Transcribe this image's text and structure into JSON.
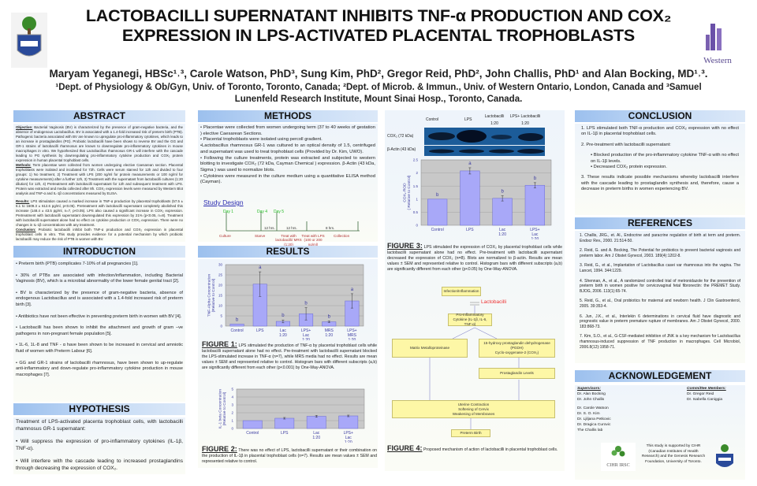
{
  "header": {
    "title_line1": "LACTOBACILLI SUPERNATANT INHIBITS TNF-α  PRODUCTION AND COX₂",
    "title_line2": "EXPRESSION IN LPS-ACTIVATED PLACENTAL TROPHOBLASTS",
    "authors": "Maryam Yeganegi, HBSc¹˒³, Carole Watson, PhD³, Sung Kim, PhD², Gregor Reid, PhD², John Challis, PhD¹ and Alan Bocking, MD¹˒³.",
    "affiliations": "¹Dept. of Physiology & Ob/Gyn, Univ. of Toronto, Toronto, Canada; ²Dept. of Microb. & Immun., Univ. of Western Ontario, London, Canada and ³Samuel Lunenfeld Research Institute, Mount Sinai Hosp., Toronto, Canada.",
    "left_logo": "University of Toronto crest",
    "right_logo_text": "Western"
  },
  "abstract": {
    "heading": "ABSTRACT",
    "objective_label": "Objective:",
    "objective": " Bacterial Vaginosis (BV) is characterized by the presence of gram-negative bacteria, and the absence of endogenous Lactobacillus. BV is associated with a 1.4-fold increased risk of preterm birth (PTB). Pathogenic bacteria associated with BV are known to upregulate pro-inflammatory cytokines, which leads to an increase in prostaglandins (PG). Probiotic lactobacilli have been shown to reverse BV and the GG and GR-1 strains of lactobacilli rhamnosus are known to downregulate pro-inflammatory cytokines in mouse macrophages in vitro. We hypothesized that Lactobacillus rhamnosus GR-1 will interfere with the cascade leading to PG synthesis by downregulating pro-inflammatory cytokine production and COX₂ protein expression in human placental trophoblast cells.",
    "methods_label": "Methods:",
    "methods": " Term placentae were collected from women undergoing elective Caesarean section. Placental trophoblasts were isolated and incubated for 72h. Cells were serum starved for 12h and divided to four groups: 1) No treatment, 2) Treatment with LPS (200 ng/ml for protein measurements or 100 ng/ml for cytokine measurements) after a further 12h, 3) Treatment with the supernatant from lactobacilli cultures (1:20 dilution) for 12h, 4) Pretreatment with lactobacilli supernatant for 12h and subsequent treatment with LPS. Protein was extracted and media collected after 8h. COX₂ expression levels were measured by Western Blot analysis and TNF-α and IL-1β concentrations measured by ELISA.",
    "results_label": "Results:",
    "results": " LPS stimulation caused a marked increase in TNF-α production by placental trophoblasts (57.5 ± 6.1 to 1609.3 ± 612.6 pg/ml, p<0.05). Pretreatment with lactobacilli supernatant completely abolished this increase (148.4 ± 43.5 pg/ml, n=7, p<0.05). LPS also caused a significant increase in COX₂ expression. Pretreatment with lactobacilli supernatant downregulated this expression by 21% (p<0.05, n=8). Treatment with lactobacilli supernatant alone had no effect on cytokine production or COX₂ expression. There were no changes in IL-1β concentrations with any treatment.",
    "conclusion_label": "Conclusion:",
    "conclusion": " Probiotic lactobacilli inhibit both TNF-α production and COX₂ expression in placental trophoblast cells in vitro. This study provides evidence for a potential mechanism by which probiotic lactobacilli may reduce the risk of PTB in women with BV."
  },
  "introduction": {
    "heading": "INTRODUCTION",
    "items": [
      "•  Preterm birth (PTB) complicates 7-10% of all pregnancies [1].",
      "•   30% of PTBs are associated with infection/inflammation, including Bacterial Vaginosis (BV), which is a microbial abnormality of the lower female genital tract [2].",
      "•   BV is  characterized by the presence of gram-negative bacteria, absence of endogenous Lactobacillus and is associated with a 1.4-fold increased risk of preterm birth [3].",
      "•   Antibiotics have not been effective in preventing preterm birth in women with BV [4].",
      "• Lactobacilli has been shown to inhibit the attachment and growth of gram –ve pathogens in non-pregnant female population [5].",
      "• 1L-6, 1L-8 and TNF - α have been shown to be increased in cervical and amniotic fluid of  women with Preterm Labour [6].",
      "• GG and GR-1 strains of lactobacilli rhamnosus, have been shown to up-regulate anti-inflammatory and down-regulate pro-inflammatory cytokine production in mouse macrophages [7]."
    ]
  },
  "hypothesis": {
    "heading": "HYPOTHESIS",
    "intro": "Treatment of LPS-activated placenta trophoblast cells, with lactobacilli rhamnosus GR-1 supernatant:",
    "items": [
      "•     Will suppress the expression of pro-inflammatory cytokines (IL-1β, TNF-α).",
      "•     Will interfere with the cascade leading to increased prostaglandins through decreasing the expression of COX₂."
    ]
  },
  "methods": {
    "heading": "METHODS",
    "items": [
      "•   Placentae were collected from women undergoing term (37 to 40 weeks of gestation ) elective Caesarean Sections.",
      "• Placental trophoblasts were isolated using percoll gradient.",
      "•Lactobacillus rhamnosus GR-1 was cultured to an optical density of 1.5, centrifuged and supernatant was used to treat trophoblast cells (Provided by Dr. Kim, UWO).",
      "• Following the culture treatments, protein was extracted and subjected to western blotting to investigate COX₂ (72 kDa, Cayman Chemical ) expression. β-Actin (43 kDa, Sigma ) was used to normalize blots.",
      "• Cytokines were measured in the culture medium using a quantitative ELISA method (Cayman)."
    ],
    "study_design": {
      "title": "Study Design",
      "days": [
        "Day 1",
        "Day 4",
        "Day 5"
      ],
      "intervals": [
        "12 hrs.",
        "12 hrs.",
        "8 hrs."
      ],
      "steps": [
        "Culture",
        "Starve",
        "Treat with lactobacilli/ MRS (1:20)",
        "Treat with LPS (100 or 200 ng/ml)",
        "Collection"
      ],
      "day_color": "#22bb22",
      "step_color": "#b03030"
    }
  },
  "results": {
    "heading": "RESULTS",
    "fig1_label": "FIGURE 1:",
    "fig1_caption": " LPS stimulated the production of TNF-α by placental trophoblast cells while lactobacilli supernatant alone had no effect. Pre-treatment with lactobacilli supernatant blocked the LPS-stimulated increase in TNF-α   (n=7), while MRS media had no effect. Results are mean values ± SEM and represented relative to control. Histogram bars with different subscripts (a,b) are significantly different from each other (p<0.001) by One-Way-ANOVA.",
    "fig2_label": "FIGURE 2:",
    "fig2_caption": " There was no effect of LPS, lactobacilli supernatant or their combination on the production of IL-1β in placental trophoblast cells (n=7). Results are mean values ± SEM and represented relative to control.",
    "fig3_label": "FIGURE 3:",
    "fig3_caption": " LPS stimulated the expression of COX₂ by placental trophoblast cells while lactobacilli supernatant alone had no effect. Pre-treatment with lactobacilli supernatant decreased the expression of COX₂ (n=8). Blots are normalized to β-actin. Results are mean values ± SEM and represented relative to control. Histogram bars with different subscripts (a,b) are significantly different from each other (p<0.05) by One-Way-ANOVA.",
    "fig4_label": "FIGURE 4:",
    "fig4_caption": " Proposed mechanism of action of lactobacilli in placental trophoblast cells.",
    "blot": {
      "lanes": [
        "Control",
        "LPS",
        "Lactobacilli 1:20",
        "LPS+ Lactobacilli 1:20"
      ],
      "rows": [
        "COX₂ (72 kDa)",
        "β-Actin (43 kDa)"
      ]
    }
  },
  "flowchart": {
    "infection": "Infection/Inflammation",
    "lactobacilli": "Lactobacilli",
    "cytokine": "Pro-Inflammatory Cytokine (IL-1β, IL-6, TNF-α)",
    "mmp": "Matrix Metalloproteinase",
    "pgdh": "15-hydroxy prostaglandin dehydrogenase (PGDH)",
    "cox": "Cyclo-oxygenase-2 (COX₂)",
    "pg": "Prostaglandin Levels",
    "uterine": [
      "Uterine Contraction",
      "Softening of Cervix",
      "Weakening of Membranes"
    ],
    "ptb": "Preterm Birth",
    "box_color": "#fdf7a6",
    "lacto_color": "#ee3333"
  },
  "conclusion": {
    "heading": "CONCLUSION",
    "item1": "1.  LPS stimulated both TNF-α production and COX₂ expression with no effect on IL-1β in placental trophoblast cells.",
    "item2": "2.  Pre-treatment with lactobacilli supernatant:",
    "sub": [
      "Blocked production of the pro-inflammatory cytokine TNF-α with no effect on IL-1β levels.",
      "Decreased COX₂ protein expression."
    ],
    "item3": "3.  These results indicate possible mechanisms whereby lactobacilli interfere with the cascade leading to prostaglandin synthesis and, therefore, cause a decrease in preterm births in women experiencing BV."
  },
  "references": {
    "heading": "REFERENCES",
    "items": [
      "1.  Challis, JRG., et. Al., Endocrine and paracrine regulation of birth at term and preterm. Endocr Rev., 2000. 21:514-50.",
      "2.   Reid, G. and A. Bocking, The Potential for probiotics to prevent bacterial vaginosis and preterm labor. Am J Obstet Gynecol, 2003. 189(4):1202-8.",
      "3.  Reid, G., et al., Implantation of Lactobacillus casei var rhamnosus into the vagina. The Lancet, 1994. 344:1229.",
      "4.  Shennan, A., et al., A randomized controlled trial of metronidazole for the prevention of preterm birth in women positive for cervicovaginal fetal fibronectin: the PREMET Study. BJOG, 2006. 113(1):65-74.",
      "5.  Reid, G., et al., Oral probiotics for maternal and newborn health. J Clin Gastroenterol, 2005. 39:353-4.",
      "6.  Jun, J.K., et al., Interlekin 6 determinations in cervical fluid have diagnostic and prognostic value in preterm premature rupture of membranes. Am J Obstet Gynecol, 2000. 183:868-73.",
      "7.  Kim, S.O., et al., G-CSF-mediated inhibition of JNK is a key mechanism for Lactobacillus rhamnosus-induced suppression of TNF production in macrophages. Cell Microbiol, 2006.8(12):1958-71."
    ]
  },
  "acknowledgement": {
    "heading": "ACKNOWLEDGEMENT",
    "supervisors_label": "Supervisors:",
    "supervisors": [
      "Dr. Alan Bocking",
      "Dr. John Challis"
    ],
    "others": [
      "Dr. Carole Watson",
      "Dr. S. O. Kim",
      "Dr. Ljiljana Petkovic",
      "Dr. Dragica Curovic",
      "The Challis lab"
    ],
    "committee_label": "Committee Members:",
    "committee": [
      "Dr. Gregor Reid",
      "Dr. Isabella Caniggia"
    ],
    "support": "This study is supported by CIHR (Canadian Institutes of Health Research) and the Genesis Research Foundation, University of Toronto.",
    "cihr_logo": "CIHR IRSC"
  },
  "chart_data": [
    {
      "id": "fig1",
      "type": "bar",
      "categories": [
        "Control",
        "LPS",
        "Lac 1:20",
        "LPS+ Lac 1:20",
        "MRS 1:20",
        "LPS+ MRS 1:20"
      ],
      "values": [
        1,
        20.5,
        2.3,
        6,
        2.1,
        12.3
      ],
      "errors": [
        0,
        6,
        0.7,
        3,
        0.4,
        3.5
      ],
      "labels": [
        "b",
        "a",
        "b",
        "b",
        "b",
        "a"
      ],
      "ylabel": "TNF-Alpha Concentration (Relative to Control)",
      "ylim": [
        0,
        30
      ],
      "yticks": [
        0,
        5,
        10,
        15,
        20,
        25,
        30
      ],
      "grid": true,
      "bar_color": "#a8a8f8",
      "plot_bg": "#c8c8c8"
    },
    {
      "id": "fig2",
      "type": "bar",
      "categories": [
        "Control",
        "LPS",
        "Lac 1:20",
        "LPS+ Lac 1:20"
      ],
      "values": [
        1,
        1.3,
        1.55,
        1.6
      ],
      "errors": [
        0,
        0.1,
        0.12,
        0.1
      ],
      "labels": [
        "",
        "",
        "",
        ""
      ],
      "ylabel": "IL-1 beta  Concentration (Relative to Control)",
      "ylim": [
        0,
        5
      ],
      "yticks": [
        0,
        1,
        2,
        3,
        4,
        5
      ],
      "grid": true,
      "bar_color": "#a8a8f8",
      "plot_bg": "#c8c8c8"
    },
    {
      "id": "fig3",
      "type": "bar",
      "categories": [
        "Control",
        "LPS",
        "Lac 1:20",
        "LPS+ Lac 1:20"
      ],
      "values": [
        1,
        2.08,
        1.03,
        1.53
      ],
      "errors": [
        0,
        0.12,
        0.1,
        0.1
      ],
      "labels": [
        "b",
        "a",
        "b",
        "b"
      ],
      "ylabel": "COX₂ ROD ( Relative to Control)",
      "ylim": [
        0,
        2.5
      ],
      "yticks": [
        0,
        0.5,
        1,
        1.5,
        2,
        2.5
      ],
      "grid": true,
      "bar_color": "#a8a8f8",
      "plot_bg": "#c8c8c8"
    }
  ]
}
